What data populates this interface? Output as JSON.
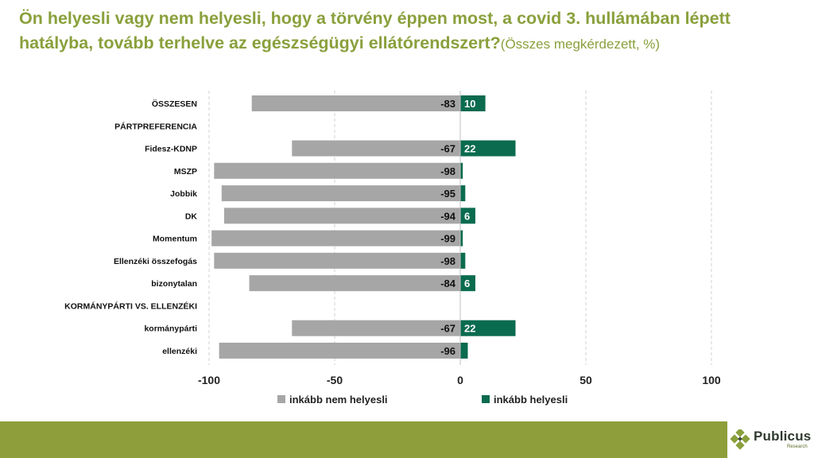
{
  "title": {
    "main": "Ön helyesli vagy nem helyesli, hogy a törvény éppen most, a covid 3. hullámában lépett hatályba, tovább terhelve az egészségügyi ellátórendszert?",
    "sub": "(Összes megkérdezett, %)"
  },
  "colors": {
    "title": "#8AA03C",
    "negative": "#A6A6A6",
    "positive": "#0B6B4E",
    "footer": "#8E9E3B"
  },
  "chart_data": {
    "type": "bar",
    "orientation": "horizontal",
    "stacked": "diverging",
    "categories": [
      "ÖSSZESEN",
      "PÁRTPREFERENCIA",
      "Fidesz-KDNP",
      "MSZP",
      "Jobbik",
      "DK",
      "Momentum",
      "Ellenzéki összefogás",
      "bizonytalan",
      "KORMÁNYPÁRTI VS. ELLENZÉKI",
      "kormánypárti",
      "ellenzéki"
    ],
    "series": [
      {
        "name": "inkább nem helyesli",
        "values": [
          -83,
          null,
          -67,
          -98,
          -95,
          -94,
          -99,
          -98,
          -84,
          null,
          -67,
          -96
        ],
        "labels": [
          "-83",
          "",
          "-67",
          "-98",
          "-95",
          "-94",
          "-99",
          "-98",
          "-84",
          "",
          "-67",
          "-96"
        ]
      },
      {
        "name": "inkább helyesli",
        "values": [
          10,
          null,
          22,
          1,
          2,
          6,
          1,
          2,
          6,
          null,
          22,
          3
        ],
        "labels": [
          "10",
          "",
          "22",
          "",
          "",
          "6",
          "",
          "",
          "6",
          "",
          "22",
          ""
        ]
      }
    ],
    "xlim": [
      -100,
      100
    ],
    "xticks": [
      -100,
      -50,
      0,
      50,
      100
    ],
    "xtick_labels": [
      "-100",
      "-50",
      "0",
      "50",
      "100"
    ],
    "grid": "vertical-dashed",
    "legend_position": "bottom"
  },
  "logo": {
    "name": "Publicus",
    "tagline": "Research"
  }
}
